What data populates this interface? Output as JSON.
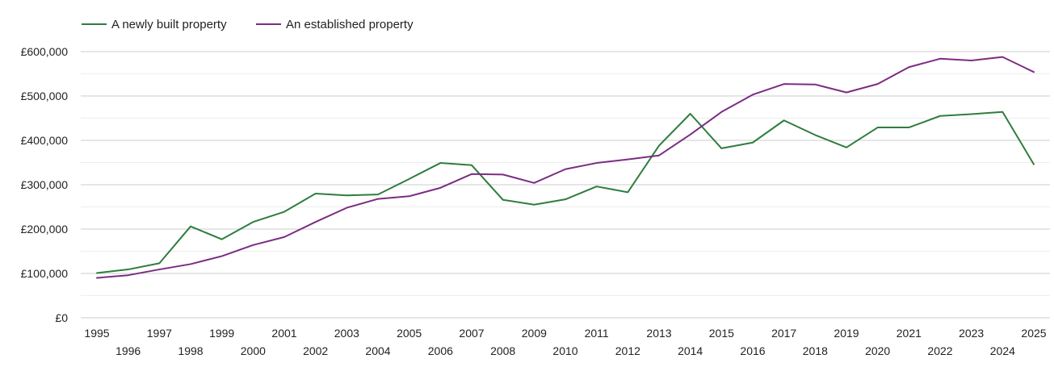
{
  "chart_data": {
    "type": "line",
    "title": "",
    "xlabel": "",
    "ylabel": "",
    "x": [
      1995,
      1996,
      1997,
      1998,
      1999,
      2000,
      2001,
      2002,
      2003,
      2004,
      2005,
      2006,
      2007,
      2008,
      2009,
      2010,
      2011,
      2012,
      2013,
      2014,
      2015,
      2016,
      2017,
      2018,
      2019,
      2020,
      2021,
      2022,
      2023,
      2024,
      2025
    ],
    "ylim": [
      0,
      600000
    ],
    "yticks": [
      0,
      100000,
      200000,
      300000,
      400000,
      500000,
      600000
    ],
    "ytick_labels": [
      "£0",
      "£100,000",
      "£200,000",
      "£300,000",
      "£400,000",
      "£500,000",
      "£600,000"
    ],
    "grid": true,
    "legend_position": "top-left",
    "series": [
      {
        "name": "A newly built property",
        "color": "#2e7d3e",
        "values": [
          101000,
          109000,
          123000,
          206000,
          177000,
          216000,
          239000,
          280000,
          276000,
          278000,
          313000,
          349000,
          344000,
          266000,
          255000,
          267000,
          296000,
          283000,
          388000,
          460000,
          382000,
          395000,
          445000,
          412000,
          384000,
          429000,
          429000,
          455000,
          459000,
          464000,
          346000
        ]
      },
      {
        "name": "An established property",
        "color": "#7b2d82",
        "values": [
          90000,
          96000,
          109000,
          121000,
          139000,
          164000,
          182000,
          216000,
          248000,
          268000,
          274000,
          293000,
          324000,
          323000,
          304000,
          335000,
          349000,
          357000,
          366000,
          413000,
          464000,
          503000,
          527000,
          526000,
          508000,
          527000,
          565000,
          584000,
          580000,
          588000,
          554000
        ]
      }
    ]
  }
}
